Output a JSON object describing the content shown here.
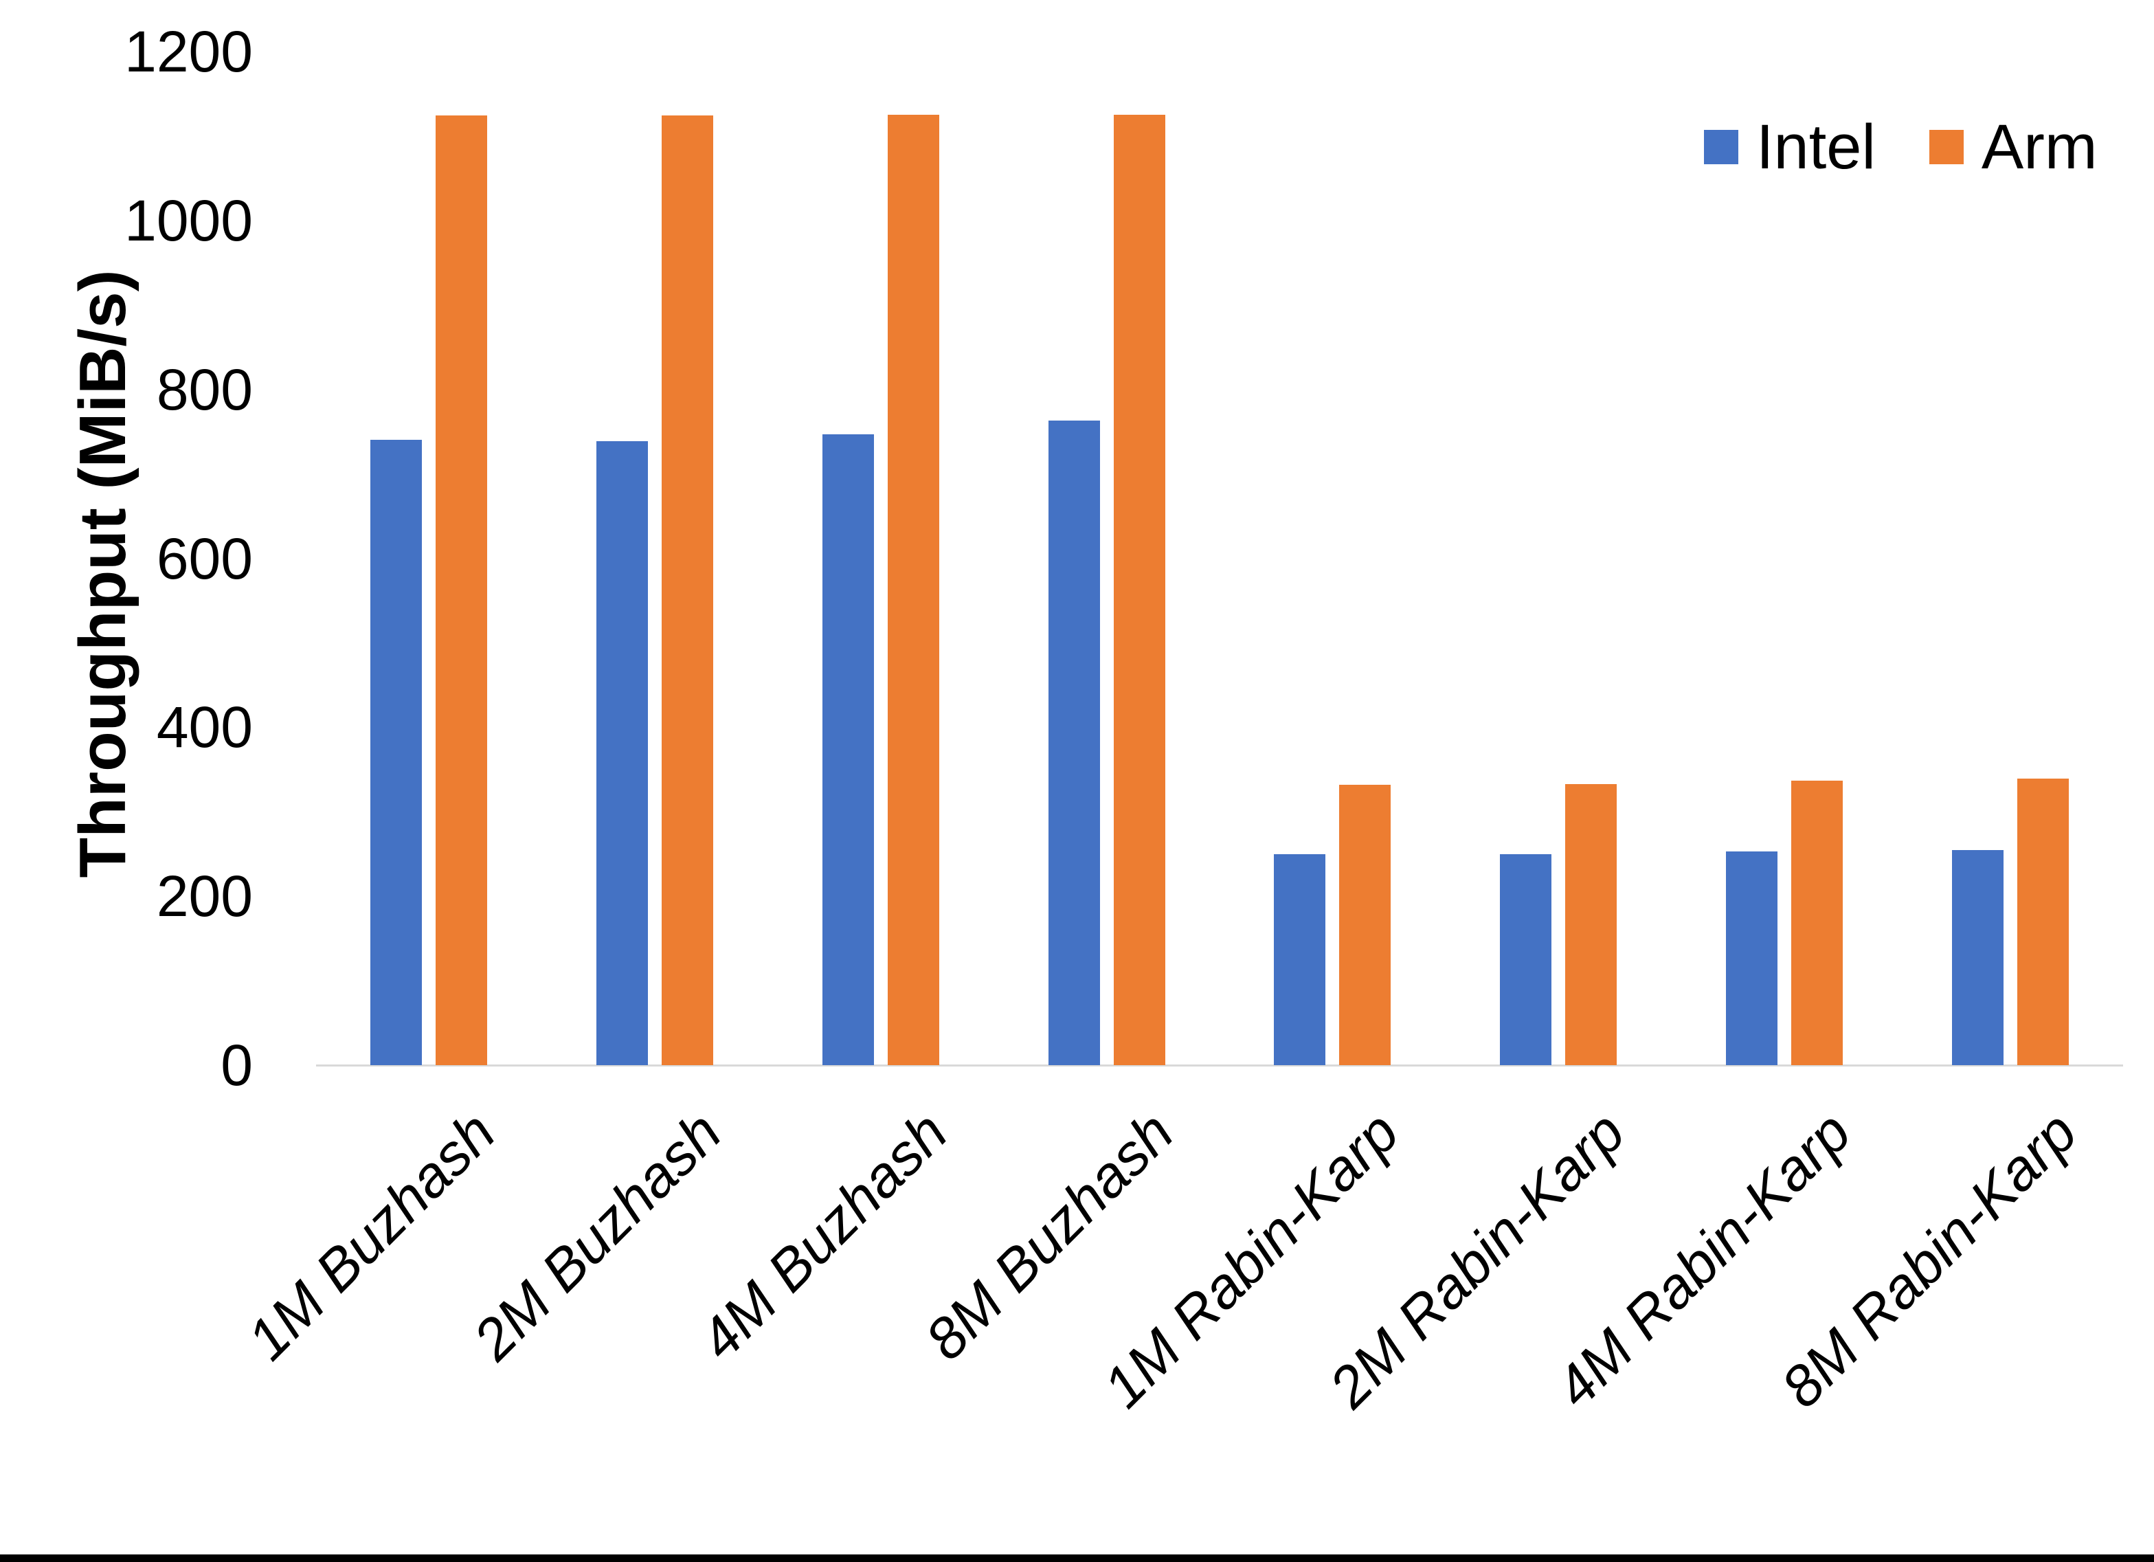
{
  "chart_data": {
    "type": "bar",
    "title": "",
    "categories": [
      "1M Buzhash",
      "2M Buzhash",
      "4M Buzhash",
      "8M Buzhash",
      "1M Rabin-Karp",
      "2M Rabin-Karp",
      "4M Rabin-Karp",
      "8M Rabin-Karp"
    ],
    "series": [
      {
        "name": "Intel",
        "color": "#4472C4",
        "values": [
          740,
          739,
          747,
          763,
          250,
          250,
          253,
          255
        ]
      },
      {
        "name": "Arm",
        "color": "#ED7D31",
        "values": [
          1124,
          1124,
          1125,
          1125,
          332,
          333,
          337,
          339
        ]
      }
    ],
    "xlabel": "",
    "ylabel": "Throughput (MiB/s)",
    "ylim": [
      0,
      1200
    ],
    "yticks": [
      0,
      200,
      400,
      600,
      800,
      1000,
      1200
    ],
    "grid": false,
    "legend_position": "top-right",
    "axis_line_color": "#D9D9D9",
    "text_color": "#000000"
  }
}
